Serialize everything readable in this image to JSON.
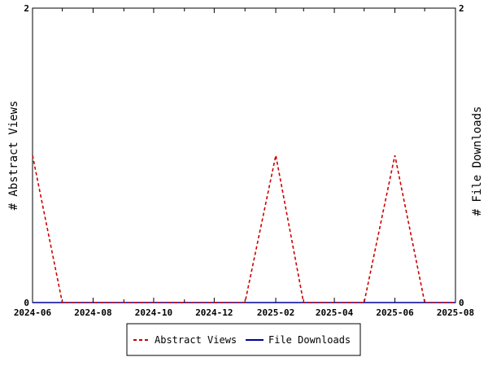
{
  "chart_data": {
    "type": "line",
    "title": "",
    "x_axis": {
      "type": "date",
      "range": [
        "2024-06-01",
        "2025-08-01"
      ],
      "tick_labels": [
        "2024-06",
        "2024-08",
        "2024-10",
        "2024-12",
        "2025-02",
        "2025-04",
        "2025-06",
        "2025-08"
      ]
    },
    "y_left": {
      "label": "# Abstract Views",
      "range": [
        0,
        2
      ],
      "tick_labels": [
        "0",
        "2"
      ]
    },
    "y_right": {
      "label": "# File Downloads",
      "range": [
        0,
        2
      ],
      "tick_labels": [
        "0",
        "2"
      ]
    },
    "grid": false,
    "legend_position": "bottom",
    "series": [
      {
        "name": "Abstract Views",
        "axis": "left",
        "color": "#cc0000",
        "dash": "dashed",
        "points": [
          {
            "x": "2024-06-01",
            "y": 1
          },
          {
            "x": "2024-07-01",
            "y": 0
          },
          {
            "x": "2025-01-01",
            "y": 0
          },
          {
            "x": "2025-02-01",
            "y": 1
          },
          {
            "x": "2025-03-01",
            "y": 0
          },
          {
            "x": "2025-05-01",
            "y": 0
          },
          {
            "x": "2025-06-01",
            "y": 1
          },
          {
            "x": "2025-07-01",
            "y": 0
          },
          {
            "x": "2025-08-01",
            "y": 0
          }
        ]
      },
      {
        "name": "File Downloads",
        "axis": "right",
        "color": "#000099",
        "dash": "solid",
        "points": [
          {
            "x": "2024-06-01",
            "y": 0
          },
          {
            "x": "2025-08-01",
            "y": 0
          }
        ]
      }
    ]
  }
}
